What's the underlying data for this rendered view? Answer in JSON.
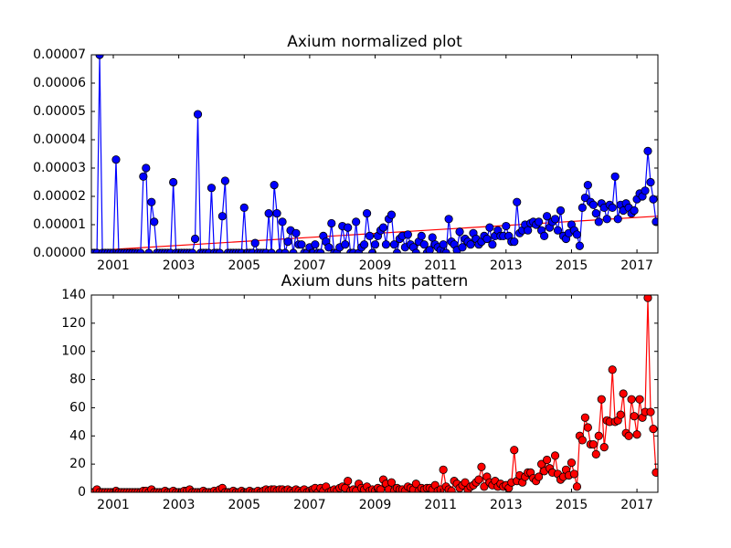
{
  "chart_data": [
    {
      "type": "line",
      "title": "Axium normalized plot",
      "color": "#0000ff",
      "marker_edge": "#000000",
      "xlim": [
        2000.33,
        2017.64
      ],
      "xticks": [
        2001,
        2003,
        2005,
        2007,
        2009,
        2011,
        2013,
        2015,
        2017
      ],
      "ylim": [
        0,
        7e-05
      ],
      "yticks": [
        {
          "value": 0,
          "label": "0.00000"
        },
        {
          "value": 1e-05,
          "label": "0.00001"
        },
        {
          "value": 2e-05,
          "label": "0.00002"
        },
        {
          "value": 3e-05,
          "label": "0.00003"
        },
        {
          "value": 4e-05,
          "label": "0.00004"
        },
        {
          "value": 5e-05,
          "label": "0.00005"
        },
        {
          "value": 6e-05,
          "label": "0.00006"
        },
        {
          "value": 7e-05,
          "label": "0.00007"
        }
      ],
      "x": [
        2000.333,
        2000.417,
        2000.5,
        2000.583,
        2000.667,
        2000.75,
        2000.833,
        2000.917,
        2001,
        2001.083,
        2001.167,
        2001.25,
        2001.333,
        2001.417,
        2001.5,
        2001.583,
        2001.667,
        2001.75,
        2001.833,
        2001.917,
        2002,
        2002.083,
        2002.167,
        2002.25,
        2002.333,
        2002.417,
        2002.5,
        2002.583,
        2002.667,
        2002.75,
        2002.833,
        2002.917,
        2003,
        2003.083,
        2003.167,
        2003.25,
        2003.333,
        2003.417,
        2003.5,
        2003.583,
        2003.667,
        2003.75,
        2003.833,
        2003.917,
        2004,
        2004.083,
        2004.167,
        2004.25,
        2004.333,
        2004.417,
        2004.5,
        2004.583,
        2004.667,
        2004.75,
        2004.833,
        2004.917,
        2005,
        2005.083,
        2005.167,
        2005.25,
        2005.333,
        2005.417,
        2005.5,
        2005.583,
        2005.667,
        2005.75,
        2005.833,
        2005.917,
        2006,
        2006.083,
        2006.167,
        2006.25,
        2006.333,
        2006.417,
        2006.5,
        2006.583,
        2006.667,
        2006.75,
        2006.833,
        2006.917,
        2007,
        2007.083,
        2007.167,
        2007.25,
        2007.333,
        2007.417,
        2007.5,
        2007.583,
        2007.667,
        2007.75,
        2007.833,
        2007.917,
        2008,
        2008.083,
        2008.167,
        2008.25,
        2008.333,
        2008.417,
        2008.5,
        2008.583,
        2008.667,
        2008.75,
        2008.833,
        2008.917,
        2009,
        2009.083,
        2009.167,
        2009.25,
        2009.333,
        2009.417,
        2009.5,
        2009.583,
        2009.667,
        2009.75,
        2009.833,
        2009.917,
        2010,
        2010.083,
        2010.167,
        2010.25,
        2010.333,
        2010.417,
        2010.5,
        2010.583,
        2010.667,
        2010.75,
        2010.833,
        2010.917,
        2011,
        2011.083,
        2011.167,
        2011.25,
        2011.333,
        2011.417,
        2011.5,
        2011.583,
        2011.667,
        2011.75,
        2011.833,
        2011.917,
        2012,
        2012.083,
        2012.167,
        2012.25,
        2012.333,
        2012.417,
        2012.5,
        2012.583,
        2012.667,
        2012.75,
        2012.833,
        2012.917,
        2013,
        2013.083,
        2013.167,
        2013.25,
        2013.333,
        2013.417,
        2013.5,
        2013.583,
        2013.667,
        2013.75,
        2013.833,
        2013.917,
        2014,
        2014.083,
        2014.167,
        2014.25,
        2014.333,
        2014.417,
        2014.5,
        2014.583,
        2014.667,
        2014.75,
        2014.833,
        2014.917,
        2015,
        2015.083,
        2015.167,
        2015.25,
        2015.333,
        2015.417,
        2015.5,
        2015.583,
        2015.667,
        2015.75,
        2015.833,
        2015.917,
        2016,
        2016.083,
        2016.167,
        2016.25,
        2016.333,
        2016.417,
        2016.5,
        2016.583,
        2016.667,
        2016.75,
        2016.833,
        2016.917,
        2017,
        2017.083,
        2017.167,
        2017.25,
        2017.333,
        2017.417,
        2017.5,
        2017.583
      ],
      "values": [
        0,
        0,
        0,
        7e-05,
        0,
        0,
        0,
        0,
        0,
        3.3e-05,
        0,
        0,
        0,
        0,
        0,
        0,
        0,
        0,
        0,
        2.7e-05,
        3e-05,
        0,
        1.8e-05,
        1.1e-05,
        0,
        0,
        0,
        0,
        0,
        0,
        2.5e-05,
        0,
        0,
        0,
        0,
        0,
        0,
        0,
        5e-06,
        4.9e-05,
        0,
        0,
        0,
        0,
        2.3e-05,
        0,
        0,
        0,
        1.3e-05,
        2.55e-05,
        0,
        0,
        0,
        0,
        0,
        0,
        1.6e-05,
        0,
        0,
        0,
        3.5e-06,
        0,
        0,
        0,
        0,
        1.4e-05,
        0,
        2.4e-05,
        1.4e-05,
        0,
        1.1e-05,
        0,
        4e-06,
        8e-06,
        0,
        7e-06,
        3e-06,
        3e-06,
        0,
        0,
        2e-06,
        0,
        3e-06,
        0,
        0,
        6e-06,
        4e-06,
        2e-06,
        1.05e-05,
        0,
        0,
        2e-06,
        9.5e-06,
        3e-06,
        9e-06,
        0,
        0,
        1.1e-05,
        0,
        2e-06,
        3e-06,
        1.4e-05,
        6e-06,
        0,
        3e-06,
        6e-06,
        8e-06,
        9e-06,
        3e-06,
        1.2e-05,
        1.35e-05,
        3e-06,
        0,
        5e-06,
        6e-06,
        2e-06,
        6.5e-06,
        3e-06,
        2e-06,
        0,
        4e-06,
        6e-06,
        3e-06,
        0,
        1e-06,
        5.5e-06,
        3e-06,
        2e-06,
        1e-06,
        3e-06,
        0,
        1.2e-05,
        4e-06,
        3e-06,
        1e-06,
        7.5e-06,
        2e-06,
        5e-06,
        4e-06,
        3e-06,
        7e-06,
        5e-06,
        3e-06,
        4e-06,
        6e-06,
        5e-06,
        9e-06,
        3e-06,
        6e-06,
        8e-06,
        6e-06,
        6e-06,
        9.5e-06,
        6e-06,
        4e-06,
        4e-06,
        1.8e-05,
        7e-06,
        8e-06,
        1e-05,
        8e-06,
        1.05e-05,
        1.1e-05,
        1e-05,
        1.1e-05,
        8e-06,
        6e-06,
        1.3e-05,
        9e-06,
        1.1e-05,
        1.2e-05,
        8e-06,
        1.5e-05,
        6e-06,
        5e-06,
        7e-06,
        1e-05,
        8e-06,
        6.5e-06,
        2.5e-06,
        1.6e-05,
        1.95e-05,
        2.4e-05,
        1.8e-05,
        1.7e-05,
        1.4e-05,
        1.1e-05,
        1.75e-05,
        1.6e-05,
        1.2e-05,
        1.7e-05,
        1.6e-05,
        2.7e-05,
        1.2e-05,
        1.7e-05,
        1.5e-05,
        1.75e-05,
        1.6e-05,
        1.4e-05,
        1.5e-05,
        1.9e-05,
        2.1e-05,
        2e-05,
        2.2e-05,
        3.6e-05,
        2.5e-05,
        1.9e-05,
        1.1e-05
      ],
      "trend": {
        "x": [
          2000.33,
          2017.64
        ],
        "values": [
          8e-07,
          1.3e-05
        ],
        "color": "#ff0000"
      }
    },
    {
      "type": "line",
      "title": "Axium duns hits pattern",
      "color": "#ff0000",
      "marker_edge": "#000000",
      "xlim": [
        2000.33,
        2017.64
      ],
      "xticks": [
        2001,
        2003,
        2005,
        2007,
        2009,
        2011,
        2013,
        2015,
        2017
      ],
      "ylim": [
        0,
        140
      ],
      "yticks": [
        0,
        20,
        40,
        60,
        80,
        100,
        120,
        140
      ],
      "x": [
        2000.333,
        2000.417,
        2000.5,
        2000.583,
        2000.667,
        2000.75,
        2000.833,
        2000.917,
        2001,
        2001.083,
        2001.167,
        2001.25,
        2001.333,
        2001.417,
        2001.5,
        2001.583,
        2001.667,
        2001.75,
        2001.833,
        2001.917,
        2002,
        2002.083,
        2002.167,
        2002.25,
        2002.333,
        2002.417,
        2002.5,
        2002.583,
        2002.667,
        2002.75,
        2002.833,
        2002.917,
        2003,
        2003.083,
        2003.167,
        2003.25,
        2003.333,
        2003.417,
        2003.5,
        2003.583,
        2003.667,
        2003.75,
        2003.833,
        2003.917,
        2004,
        2004.083,
        2004.167,
        2004.25,
        2004.333,
        2004.417,
        2004.5,
        2004.583,
        2004.667,
        2004.75,
        2004.833,
        2004.917,
        2005,
        2005.083,
        2005.167,
        2005.25,
        2005.333,
        2005.417,
        2005.5,
        2005.583,
        2005.667,
        2005.75,
        2005.833,
        2005.917,
        2006,
        2006.083,
        2006.167,
        2006.25,
        2006.333,
        2006.417,
        2006.5,
        2006.583,
        2006.667,
        2006.75,
        2006.833,
        2006.917,
        2007,
        2007.083,
        2007.167,
        2007.25,
        2007.333,
        2007.417,
        2007.5,
        2007.583,
        2007.667,
        2007.75,
        2007.833,
        2007.917,
        2008,
        2008.083,
        2008.167,
        2008.25,
        2008.333,
        2008.417,
        2008.5,
        2008.583,
        2008.667,
        2008.75,
        2008.833,
        2008.917,
        2009,
        2009.083,
        2009.167,
        2009.25,
        2009.333,
        2009.417,
        2009.5,
        2009.583,
        2009.667,
        2009.75,
        2009.833,
        2009.917,
        2010,
        2010.083,
        2010.167,
        2010.25,
        2010.333,
        2010.417,
        2010.5,
        2010.583,
        2010.667,
        2010.75,
        2010.833,
        2010.917,
        2011,
        2011.083,
        2011.167,
        2011.25,
        2011.333,
        2011.417,
        2011.5,
        2011.583,
        2011.667,
        2011.75,
        2011.833,
        2011.917,
        2012,
        2012.083,
        2012.167,
        2012.25,
        2012.333,
        2012.417,
        2012.5,
        2012.583,
        2012.667,
        2012.75,
        2012.833,
        2012.917,
        2013,
        2013.083,
        2013.167,
        2013.25,
        2013.333,
        2013.417,
        2013.5,
        2013.583,
        2013.667,
        2013.75,
        2013.833,
        2013.917,
        2014,
        2014.083,
        2014.167,
        2014.25,
        2014.333,
        2014.417,
        2014.5,
        2014.583,
        2014.667,
        2014.75,
        2014.833,
        2014.917,
        2015,
        2015.083,
        2015.167,
        2015.25,
        2015.333,
        2015.417,
        2015.5,
        2015.583,
        2015.667,
        2015.75,
        2015.833,
        2015.917,
        2016,
        2016.083,
        2016.167,
        2016.25,
        2016.333,
        2016.417,
        2016.5,
        2016.583,
        2016.667,
        2016.75,
        2016.833,
        2016.917,
        2017,
        2017.083,
        2017.167,
        2017.25,
        2017.333,
        2017.417,
        2017.5,
        2017.583
      ],
      "values": [
        0,
        0,
        2,
        0,
        0,
        0,
        0,
        0,
        0,
        1,
        0,
        0,
        0,
        0,
        0,
        0,
        0,
        0,
        0,
        1,
        1,
        0,
        2,
        0,
        0,
        0,
        0,
        1,
        0,
        0,
        1,
        0,
        0,
        0,
        1,
        1,
        2,
        0,
        0,
        0,
        0,
        1,
        0,
        0,
        0,
        1,
        0,
        2,
        3,
        0,
        0,
        0,
        1,
        0,
        0,
        1,
        0,
        0,
        1,
        0,
        0,
        1,
        0,
        1,
        2,
        1,
        2,
        2,
        1,
        2,
        2,
        1,
        2,
        1,
        0,
        2,
        1,
        0,
        2,
        0,
        1,
        2,
        3,
        0,
        3,
        1,
        4,
        0,
        1,
        2,
        1,
        3,
        4,
        3,
        8,
        1,
        2,
        1,
        6,
        3,
        2,
        4,
        1,
        2,
        1,
        3,
        2,
        9,
        6,
        2,
        7,
        1,
        3,
        2,
        2,
        1,
        4,
        3,
        2,
        6,
        1,
        3,
        2,
        3,
        3,
        2,
        5,
        1,
        2,
        16,
        4,
        2,
        1,
        8,
        6,
        3,
        5,
        7,
        2,
        4,
        5,
        7,
        9,
        18,
        4,
        11,
        7,
        5,
        8,
        4,
        6,
        4,
        5,
        3,
        7,
        30,
        8,
        12,
        7,
        11,
        14,
        14,
        10,
        8,
        11,
        20,
        15,
        23,
        17,
        14,
        26,
        13,
        9,
        11,
        16,
        12,
        21,
        13,
        4,
        40,
        37,
        53,
        46,
        34,
        34,
        27,
        40,
        66,
        32,
        51,
        50,
        87,
        50,
        51,
        55,
        70,
        42,
        40,
        66,
        54,
        41,
        66,
        53,
        57,
        138,
        57,
        45,
        14
      ]
    }
  ]
}
